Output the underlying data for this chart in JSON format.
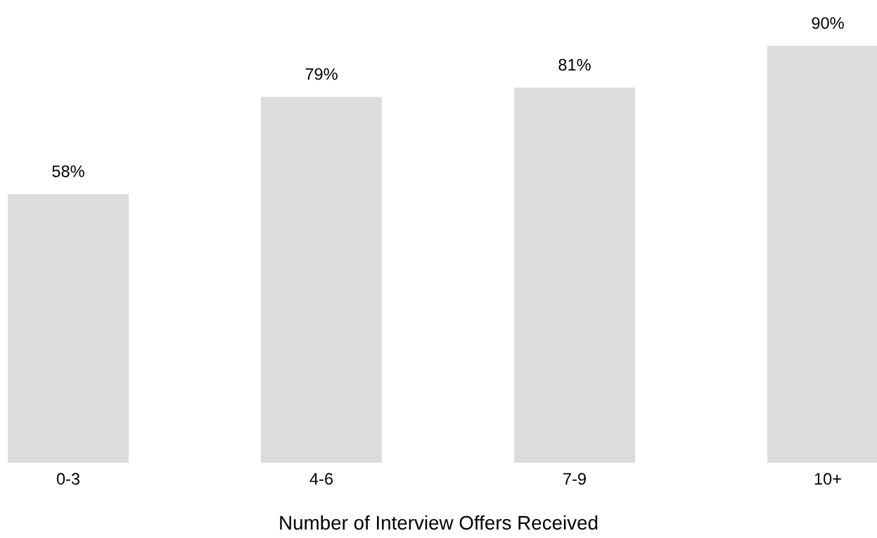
{
  "chart_data": {
    "type": "bar",
    "xlabel": "Number of Interview Offers Received",
    "categories": [
      "0-3",
      "4-6",
      "7-9",
      "10+"
    ],
    "values": [
      58,
      79,
      81,
      90
    ],
    "value_labels": [
      "58%",
      "79%",
      "81%",
      "90%"
    ],
    "color": "#dcdcdc",
    "tick_labels": "x",
    "grid": false,
    "legend": false
  }
}
